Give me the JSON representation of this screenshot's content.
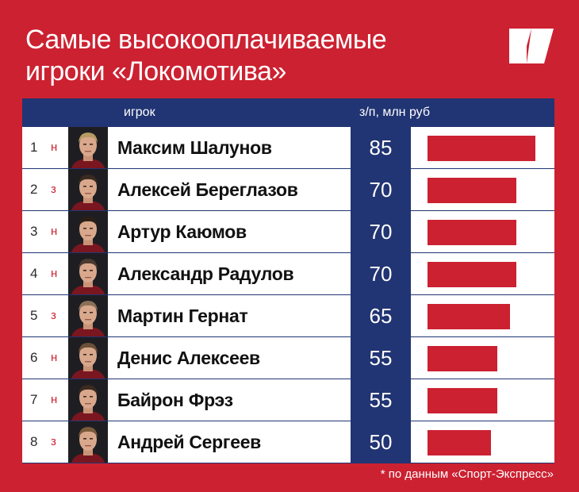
{
  "header": {
    "title_line1": "Самые высокооплачиваемые",
    "title_line2": "игроки «Локомотива»"
  },
  "logo": {
    "icon": "brand-logo-icon"
  },
  "table": {
    "col_player": "игрок",
    "col_salary": "з/п, млн руб"
  },
  "chart_data": {
    "type": "bar",
    "orientation": "horizontal",
    "title": "Самые высокооплачиваемые игроки «Локомотива»",
    "xlabel": "з/п, млн руб",
    "categories": [
      "Максим Шалунов",
      "Алексей Береглазов",
      "Артур Каюмов",
      "Александр Радулов",
      "Мартин Гернат",
      "Денис Алексеев",
      "Байрон Фрэз",
      "Андрей Сергеев"
    ],
    "values": [
      85,
      70,
      70,
      70,
      65,
      55,
      55,
      50
    ],
    "xlim": [
      0,
      100
    ],
    "grid": false,
    "bar_color": "#cc2131",
    "rows": [
      {
        "rank": "1",
        "pos": "н",
        "name": "Максим Шалунов",
        "salary": "85",
        "value": 85
      },
      {
        "rank": "2",
        "pos": "з",
        "name": "Алексей Береглазов",
        "salary": "70",
        "value": 70
      },
      {
        "rank": "3",
        "pos": "н",
        "name": "Артур Каюмов",
        "salary": "70",
        "value": 70
      },
      {
        "rank": "4",
        "pos": "н",
        "name": "Александр Радулов",
        "salary": "70",
        "value": 70
      },
      {
        "rank": "5",
        "pos": "з",
        "name": "Мартин Гернат",
        "salary": "65",
        "value": 65
      },
      {
        "rank": "6",
        "pos": "н",
        "name": "Денис Алексеев",
        "salary": "55",
        "value": 55
      },
      {
        "rank": "7",
        "pos": "н",
        "name": "Байрон Фрэз",
        "salary": "55",
        "value": 55
      },
      {
        "rank": "8",
        "pos": "з",
        "name": "Андрей Сергеев",
        "salary": "50",
        "value": 50
      }
    ]
  },
  "footnote": "* по данным «Спорт-Экспресс»",
  "colors": {
    "background": "#cc2131",
    "navy": "#213473",
    "white": "#ffffff"
  }
}
